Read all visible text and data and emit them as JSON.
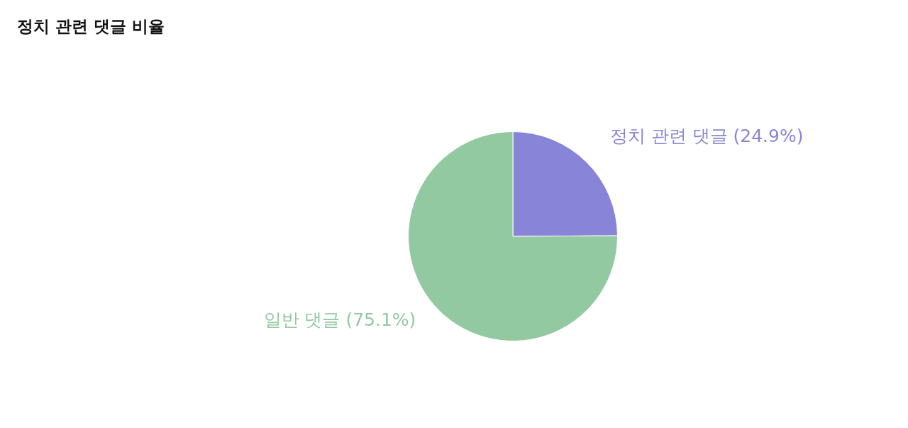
{
  "chart_data": {
    "type": "pie",
    "title": "정치 관련 댓글 비율",
    "categories": [
      "정치 관련 댓글",
      "일반 댓글"
    ],
    "values": [
      24.9,
      75.1
    ],
    "colors": [
      "#8884d8",
      "#93c9a0"
    ],
    "value_labels": [
      "(24.9%)",
      "(75.1%)"
    ],
    "legend": false
  }
}
